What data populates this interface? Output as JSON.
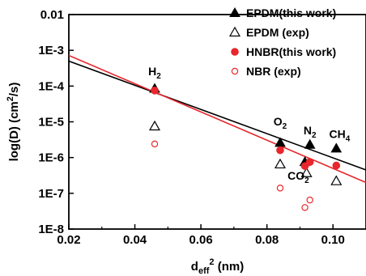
{
  "chart_data": {
    "type": "scatter",
    "xlabel": "d_eff^2 (nm)",
    "ylabel": "log(D) (cm^2/s)",
    "xlim": [
      0.02,
      0.11
    ],
    "ylim": [
      1e-08,
      0.01
    ],
    "y_scale": "log",
    "x_ticks": [
      0.02,
      0.04,
      0.06,
      0.08,
      0.1
    ],
    "x_tick_labels": [
      "0.02",
      "0.04",
      "0.06",
      "0.08",
      "0.10"
    ],
    "y_ticks": [
      1e-08,
      1e-07,
      1e-06,
      1e-05,
      0.0001,
      0.001,
      0.01
    ],
    "y_tick_labels": [
      "1E-8",
      "1E-7",
      "1E-6",
      "1E-5",
      "1E-4",
      "1E-3",
      "0.01"
    ],
    "legend_position": "top-right",
    "series": [
      {
        "name": "EPDM(this work)",
        "marker": "filled-triangle",
        "color": "#000000",
        "x": [
          0.046,
          0.084,
          0.0915,
          0.093,
          0.101
        ],
        "y": [
          8.5e-05,
          2.6e-06,
          7.5e-07,
          2.3e-06,
          1.8e-06
        ]
      },
      {
        "name": "EPDM (exp)",
        "marker": "open-triangle",
        "color": "#000000",
        "x": [
          0.046,
          0.084,
          0.092,
          0.101
        ],
        "y": [
          7.5e-06,
          6.5e-07,
          3.7e-07,
          2.2e-07
        ]
      },
      {
        "name": "HNBR(this work)",
        "marker": "filled-circle",
        "color": "#e8262b",
        "x": [
          0.046,
          0.084,
          0.0915,
          0.093,
          0.101
        ],
        "y": [
          7.5e-05,
          1.6e-06,
          5.8e-07,
          7.5e-07,
          6e-07
        ]
      },
      {
        "name": "NBR (exp)",
        "marker": "open-circle",
        "color": "#e8262b",
        "x": [
          0.046,
          0.084,
          0.0915,
          0.093
        ],
        "y": [
          2.4e-06,
          1.4e-07,
          4e-08,
          6.5e-08
        ]
      }
    ],
    "fit_lines": [
      {
        "color": "#000000",
        "x": [
          0.02,
          0.11
        ],
        "y": [
          0.0005,
          4.5e-07
        ]
      },
      {
        "color": "#e8262b",
        "x": [
          0.02,
          0.11
        ],
        "y": [
          0.00072,
          2e-07
        ]
      }
    ],
    "annotations": [
      {
        "label": "H",
        "subscript": "2",
        "x": 0.046,
        "y": 0.0002
      },
      {
        "label": "O",
        "subscript": "2",
        "x": 0.084,
        "y": 8e-06
      },
      {
        "label": "N",
        "subscript": "2",
        "x": 0.093,
        "y": 4.5e-06
      },
      {
        "label": "CH",
        "subscript": "4",
        "x": 0.102,
        "y": 3.5e-06
      },
      {
        "label": "CO",
        "subscript": "2",
        "x": 0.0895,
        "y": 2.4e-07
      }
    ]
  }
}
